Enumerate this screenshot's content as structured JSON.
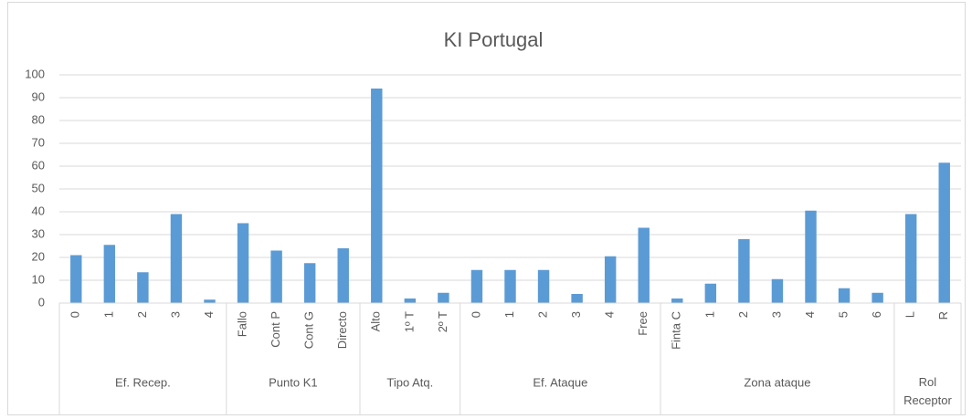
{
  "chart_data": {
    "type": "bar",
    "title": "KI Portugal",
    "color": "#5b9bd5",
    "grid": true,
    "ylim": [
      0,
      100
    ],
    "yticks": [
      0,
      10,
      20,
      30,
      40,
      50,
      60,
      70,
      80,
      90,
      100
    ],
    "groups": [
      {
        "name": "Ef. Recep.",
        "categories": [
          "0",
          "1",
          "2",
          "3",
          "4"
        ],
        "values": [
          21,
          25.5,
          13.5,
          39,
          1.5
        ]
      },
      {
        "name": "Punto K1",
        "categories": [
          "Fallo",
          "Cont P",
          "Cont G",
          "Directo"
        ],
        "values": [
          35,
          23,
          17.5,
          24
        ]
      },
      {
        "name": "Tipo Atq.",
        "categories": [
          "Alto",
          "1º T",
          "2º T"
        ],
        "values": [
          94,
          2,
          4.5
        ]
      },
      {
        "name": "Ef. Ataque",
        "categories": [
          "0",
          "1",
          "2",
          "3",
          "4",
          "Free"
        ],
        "values": [
          14.5,
          14.5,
          14.5,
          4,
          20.5,
          33
        ]
      },
      {
        "name": "Zona ataque",
        "categories": [
          "Finta C",
          "1",
          "2",
          "3",
          "4",
          "5",
          "6"
        ],
        "values": [
          2,
          8.5,
          28,
          10.5,
          40.5,
          6.5,
          4.5
        ]
      },
      {
        "name": "Rol Receptor",
        "categories": [
          "L",
          "R"
        ],
        "values": [
          39,
          61.5
        ]
      }
    ]
  }
}
